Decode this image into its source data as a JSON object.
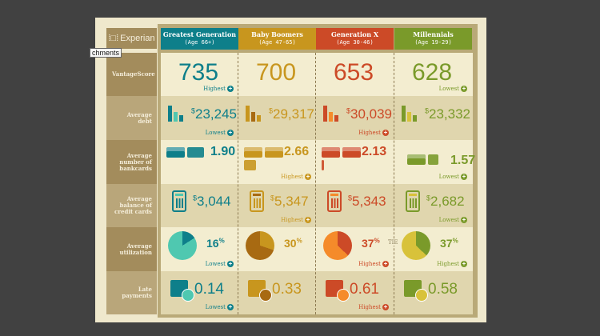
{
  "logo": "Experian",
  "tooltip": "chments",
  "generations": [
    {
      "name": "Greatest Generation",
      "age": "(Age 66+)",
      "color": "#0e7f8a",
      "light": "#4fc8b0"
    },
    {
      "name": "Baby Boomers",
      "age": "(Age 47-65)",
      "color": "#c8961e",
      "light": "#a86a12"
    },
    {
      "name": "Generation X",
      "age": "(Age 30-46)",
      "color": "#cc4a27",
      "light": "#f58b2a"
    },
    {
      "name": "Millennials",
      "age": "(Age 19-29)",
      "color": "#7a9a2a",
      "light": "#d8c23a"
    }
  ],
  "rows": [
    {
      "label": "VantageScore",
      "type": "score",
      "values": [
        "735",
        "700",
        "653",
        "628"
      ],
      "notes": [
        "Highest",
        "",
        "",
        "Lowest"
      ]
    },
    {
      "label": "Average debt",
      "type": "debt",
      "values": [
        "23,245",
        "29,317",
        "30,039",
        "23,332"
      ],
      "notes": [
        "Lowest",
        "",
        "Highest",
        ""
      ]
    },
    {
      "label": "Average number of bankcards",
      "type": "cards",
      "values": [
        "1.90",
        "2.66",
        "2.13",
        "1.57"
      ],
      "card_counts": [
        1.9,
        2.66,
        2.13,
        1.57
      ],
      "notes": [
        "",
        "Highest",
        "",
        "Lowest"
      ]
    },
    {
      "label": "Average balance of credit cards",
      "type": "calc",
      "values": [
        "3,044",
        "5,347",
        "5,343",
        "2,682"
      ],
      "notes": [
        "",
        "Highest",
        "",
        "Lowest"
      ]
    },
    {
      "label": "Average utilization",
      "type": "pie",
      "values": [
        "16",
        "30",
        "37",
        "37"
      ],
      "percent": [
        16,
        30,
        37,
        37
      ],
      "notes": [
        "Lowest",
        "",
        "Highest",
        "Highest"
      ]
    },
    {
      "label": "Late payments",
      "type": "cal",
      "values": [
        "0.14",
        "0.33",
        "0.61",
        "0.58"
      ],
      "notes": [
        "Lowest",
        "",
        "Highest",
        ""
      ]
    }
  ],
  "tie_label": "TIE",
  "currency": "$",
  "percent_sign": "%",
  "note_icon": "plus-circle-icon"
}
